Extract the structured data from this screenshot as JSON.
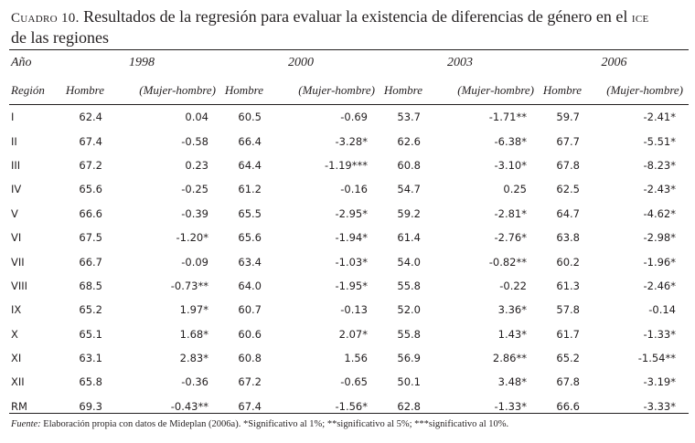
{
  "caption": {
    "label": "Cuadro 10.",
    "title": "Resultados de la regresión para evaluar la existencia de diferencias de género en el",
    "abbr": "ice",
    "title_end": "de las regiones"
  },
  "table": {
    "anio_label": "Año",
    "region_label": "Región",
    "years": [
      "1998",
      "2000",
      "2003",
      "2006"
    ],
    "col_hombre": "Hombre",
    "col_diff": "(Mujer-hombre)",
    "rows": [
      {
        "region": "I",
        "v": [
          "62.4",
          "0.04",
          "60.5",
          "-0.69",
          "53.7",
          "-1.71**",
          "59.7",
          "-2.41*"
        ]
      },
      {
        "region": "II",
        "v": [
          "67.4",
          "-0.58",
          "66.4",
          "-3.28*",
          "62.6",
          "-6.38*",
          "67.7",
          "-5.51*"
        ]
      },
      {
        "region": "III",
        "v": [
          "67.2",
          "0.23",
          "64.4",
          "-1.19***",
          "60.8",
          "-3.10*",
          "67.8",
          "-8.23*"
        ]
      },
      {
        "region": "IV",
        "v": [
          "65.6",
          "-0.25",
          "61.2",
          "-0.16",
          "54.7",
          "0.25",
          "62.5",
          "-2.43*"
        ]
      },
      {
        "region": "V",
        "v": [
          "66.6",
          "-0.39",
          "65.5",
          "-2.95*",
          "59.2",
          "-2.81*",
          "64.7",
          "-4.62*"
        ]
      },
      {
        "region": "VI",
        "v": [
          "67.5",
          "-1.20*",
          "65.6",
          "-1.94*",
          "61.4",
          "-2.76*",
          "63.8",
          "-2.98*"
        ]
      },
      {
        "region": "VII",
        "v": [
          "66.7",
          "-0.09",
          "63.4",
          "-1.03*",
          "54.0",
          "-0.82**",
          "60.2",
          "-1.96*"
        ]
      },
      {
        "region": "VIII",
        "v": [
          "68.5",
          "-0.73**",
          "64.0",
          "-1.95*",
          "55.8",
          "-0.22",
          "61.3",
          "-2.46*"
        ]
      },
      {
        "region": "IX",
        "v": [
          "65.2",
          "1.97*",
          "60.7",
          "-0.13",
          "52.0",
          "3.36*",
          "57.8",
          "-0.14"
        ]
      },
      {
        "region": "X",
        "v": [
          "65.1",
          "1.68*",
          "60.6",
          "2.07*",
          "55.8",
          "1.43*",
          "61.7",
          "-1.33*"
        ]
      },
      {
        "region": "XI",
        "v": [
          "63.1",
          "2.83*",
          "60.8",
          "1.56",
          "56.9",
          "2.86**",
          "65.2",
          "-1.54**"
        ]
      },
      {
        "region": "XII",
        "v": [
          "65.8",
          "-0.36",
          "67.2",
          "-0.65",
          "50.1",
          "3.48*",
          "67.8",
          "-3.19*"
        ]
      },
      {
        "region": "RM",
        "v": [
          "69.3",
          "-0.43**",
          "67.4",
          "-1.56*",
          "62.8",
          "-1.33*",
          "66.6",
          "-3.33*"
        ]
      }
    ]
  },
  "footnote": {
    "source_label": "Fuente:",
    "text": "Elaboración propia con datos de Mideplan (2006a). *Significativo al 1%; **significativo al 5%; ***significativo al 10%."
  }
}
